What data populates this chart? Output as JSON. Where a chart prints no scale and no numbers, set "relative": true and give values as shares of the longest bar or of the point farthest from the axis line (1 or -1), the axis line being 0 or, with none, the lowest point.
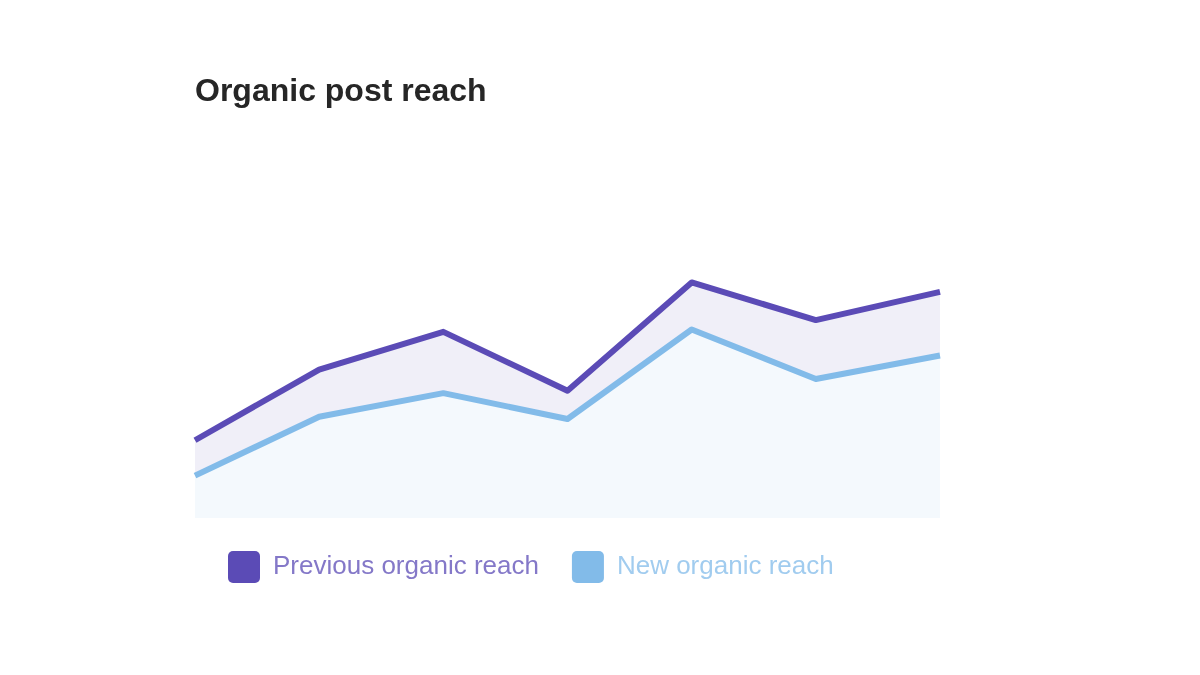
{
  "chart_data": {
    "type": "area",
    "title": "Organic post reach",
    "relative": true,
    "categories": [
      null,
      null,
      null,
      null,
      null,
      null,
      null
    ],
    "series": [
      {
        "name": "Previous organic reach",
        "color": "#5b4bb6",
        "values": [
          0.33,
          0.63,
          0.79,
          0.54,
          1,
          0.84,
          0.96
        ]
      },
      {
        "name": "New organic reach",
        "color": "#82bbe9",
        "values": [
          0.18,
          0.43,
          0.53,
          0.42,
          0.8,
          0.59,
          0.69
        ]
      }
    ],
    "legend": "bottom left",
    "marker": "none",
    "tick_labels": false
  }
}
